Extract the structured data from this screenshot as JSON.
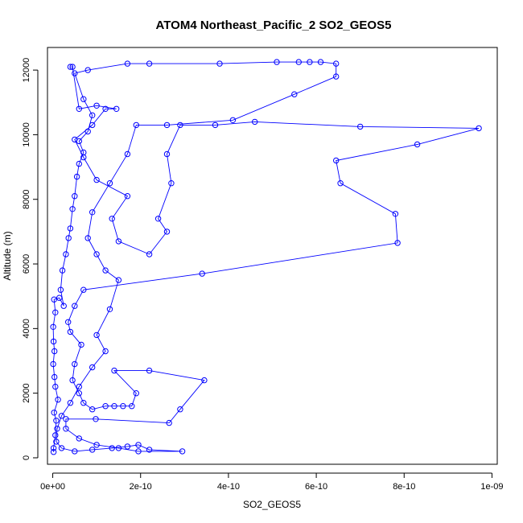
{
  "chart_data": {
    "type": "scatter",
    "title": "ATOM4 Northeast_Pacific_2 SO2_GEOS5",
    "xlabel": "SO2_GEOS5",
    "ylabel": "Altitude (m)",
    "xlim": [
      -1.2e-11,
      1.012e-09
    ],
    "ylim": [
      -200,
      12700
    ],
    "x_ticks": [
      0,
      2e-10,
      4e-10,
      6e-10,
      8e-10,
      1e-09
    ],
    "x_tick_labels": [
      "0e+00",
      "2e-10",
      "4e-10",
      "6e-10",
      "8e-10",
      "1e-09"
    ],
    "y_ticks": [
      0,
      2000,
      4000,
      6000,
      8000,
      10000,
      12000
    ],
    "y_tick_labels": [
      "0",
      "2000",
      "4000",
      "6000",
      "8000",
      "10000",
      "12000"
    ],
    "grid": false,
    "series": [
      {
        "color": "#0000ff",
        "marker": "open-circle",
        "connected": true,
        "points": [
          [
            2e-12,
            180
          ],
          [
            2e-12,
            300
          ],
          [
            6e-12,
            700
          ],
          [
            8e-12,
            1150
          ],
          [
            3e-12,
            1400
          ],
          [
            1.2e-11,
            1800
          ],
          [
            6e-12,
            2200
          ],
          [
            4e-12,
            2500
          ],
          [
            1e-12,
            2900
          ],
          [
            4e-12,
            3300
          ],
          [
            2e-12,
            3600
          ],
          [
            1e-12,
            4050
          ],
          [
            6e-12,
            4500
          ],
          [
            3e-12,
            4900
          ],
          [
            1.5e-11,
            4950
          ],
          [
            2.5e-11,
            4700
          ],
          [
            1.8e-11,
            5200
          ],
          [
            2.2e-11,
            5800
          ],
          [
            3e-11,
            6300
          ],
          [
            3.6e-11,
            6800
          ],
          [
            4e-11,
            7100
          ],
          [
            4.5e-11,
            7700
          ],
          [
            5e-11,
            8100
          ],
          [
            5.5e-11,
            8700
          ],
          [
            6e-11,
            9100
          ],
          [
            7e-11,
            9450
          ],
          [
            6e-11,
            9800
          ],
          [
            8e-11,
            10100
          ],
          [
            9e-11,
            10600
          ],
          [
            7e-11,
            11100
          ],
          [
            5e-11,
            11900
          ],
          [
            8e-11,
            12000
          ],
          [
            1.7e-10,
            12200
          ],
          [
            2.2e-10,
            12200
          ],
          [
            3.8e-10,
            12200
          ],
          [
            5.1e-10,
            12250
          ],
          [
            5.6e-10,
            12250
          ],
          [
            5.85e-10,
            12250
          ],
          [
            6.1e-10,
            12250
          ],
          [
            6.45e-10,
            12200
          ],
          [
            6.45e-10,
            11800
          ],
          [
            5.5e-10,
            11250
          ],
          [
            4.1e-10,
            10450
          ],
          [
            2.6e-10,
            10300
          ],
          [
            1.9e-10,
            10300
          ],
          [
            1.7e-10,
            9400
          ],
          [
            1.3e-10,
            8500
          ],
          [
            9e-11,
            7600
          ],
          [
            8e-11,
            6800
          ],
          [
            1e-10,
            6300
          ],
          [
            1.2e-10,
            5800
          ],
          [
            1.5e-10,
            5500
          ],
          [
            1.3e-10,
            4600
          ],
          [
            1e-10,
            3800
          ],
          [
            1.2e-10,
            3300
          ],
          [
            9e-11,
            2800
          ],
          [
            6e-11,
            2200
          ],
          [
            4e-11,
            1700
          ],
          [
            2e-11,
            1300
          ],
          [
            1e-11,
            900
          ],
          [
            8e-12,
            500
          ],
          [
            2e-11,
            300
          ],
          [
            5e-11,
            200
          ],
          [
            9e-11,
            250
          ],
          [
            1.35e-10,
            300
          ],
          [
            1.7e-10,
            350
          ],
          [
            1.95e-10,
            400
          ],
          [
            2.2e-10,
            250
          ],
          [
            2.95e-10,
            200
          ],
          [
            1.95e-10,
            200
          ],
          [
            1.5e-10,
            300
          ],
          [
            1e-10,
            400
          ],
          [
            6e-11,
            600
          ],
          [
            3e-11,
            900
          ],
          [
            3e-11,
            1200
          ],
          [
            9.8e-11,
            1200
          ],
          [
            2.65e-10,
            1080
          ],
          [
            2.9e-10,
            1500
          ],
          [
            3.45e-10,
            2400
          ],
          [
            2.2e-10,
            2700
          ],
          [
            1.4e-10,
            2700
          ],
          [
            1.9e-10,
            2000
          ],
          [
            1.8e-10,
            1600
          ],
          [
            1.6e-10,
            1600
          ],
          [
            1.4e-10,
            1600
          ],
          [
            1.2e-10,
            1600
          ],
          [
            9e-11,
            1500
          ],
          [
            7e-11,
            1700
          ],
          [
            6e-11,
            2000
          ],
          [
            4.5e-11,
            2400
          ],
          [
            5e-11,
            2900
          ],
          [
            6.5e-11,
            3500
          ],
          [
            4e-11,
            3900
          ],
          [
            3.5e-11,
            4200
          ],
          [
            5e-11,
            4700
          ],
          [
            7e-11,
            5200
          ],
          [
            3.4e-10,
            5700
          ],
          [
            7.85e-10,
            6650
          ],
          [
            7.8e-10,
            7550
          ],
          [
            6.55e-10,
            8500
          ],
          [
            6.45e-10,
            9200
          ],
          [
            8.3e-10,
            9700
          ],
          [
            9.7e-10,
            10200
          ],
          [
            7e-10,
            10250
          ],
          [
            4.6e-10,
            10400
          ],
          [
            3.7e-10,
            10300
          ],
          [
            2.9e-10,
            10300
          ],
          [
            2.6e-10,
            9400
          ],
          [
            2.7e-10,
            8500
          ],
          [
            2.4e-10,
            7400
          ],
          [
            2.6e-10,
            7000
          ],
          [
            2.2e-10,
            6300
          ],
          [
            1.5e-10,
            6700
          ],
          [
            1.35e-10,
            7400
          ],
          [
            1.7e-10,
            8100
          ],
          [
            1e-10,
            8600
          ],
          [
            7e-11,
            9300
          ],
          [
            5e-11,
            9850
          ],
          [
            9e-11,
            10300
          ],
          [
            1.2e-10,
            10800
          ],
          [
            1.45e-10,
            10800
          ],
          [
            1e-10,
            10900
          ],
          [
            6e-11,
            10800
          ],
          [
            4.5e-11,
            12100
          ],
          [
            4e-11,
            12100
          ]
        ]
      }
    ]
  }
}
